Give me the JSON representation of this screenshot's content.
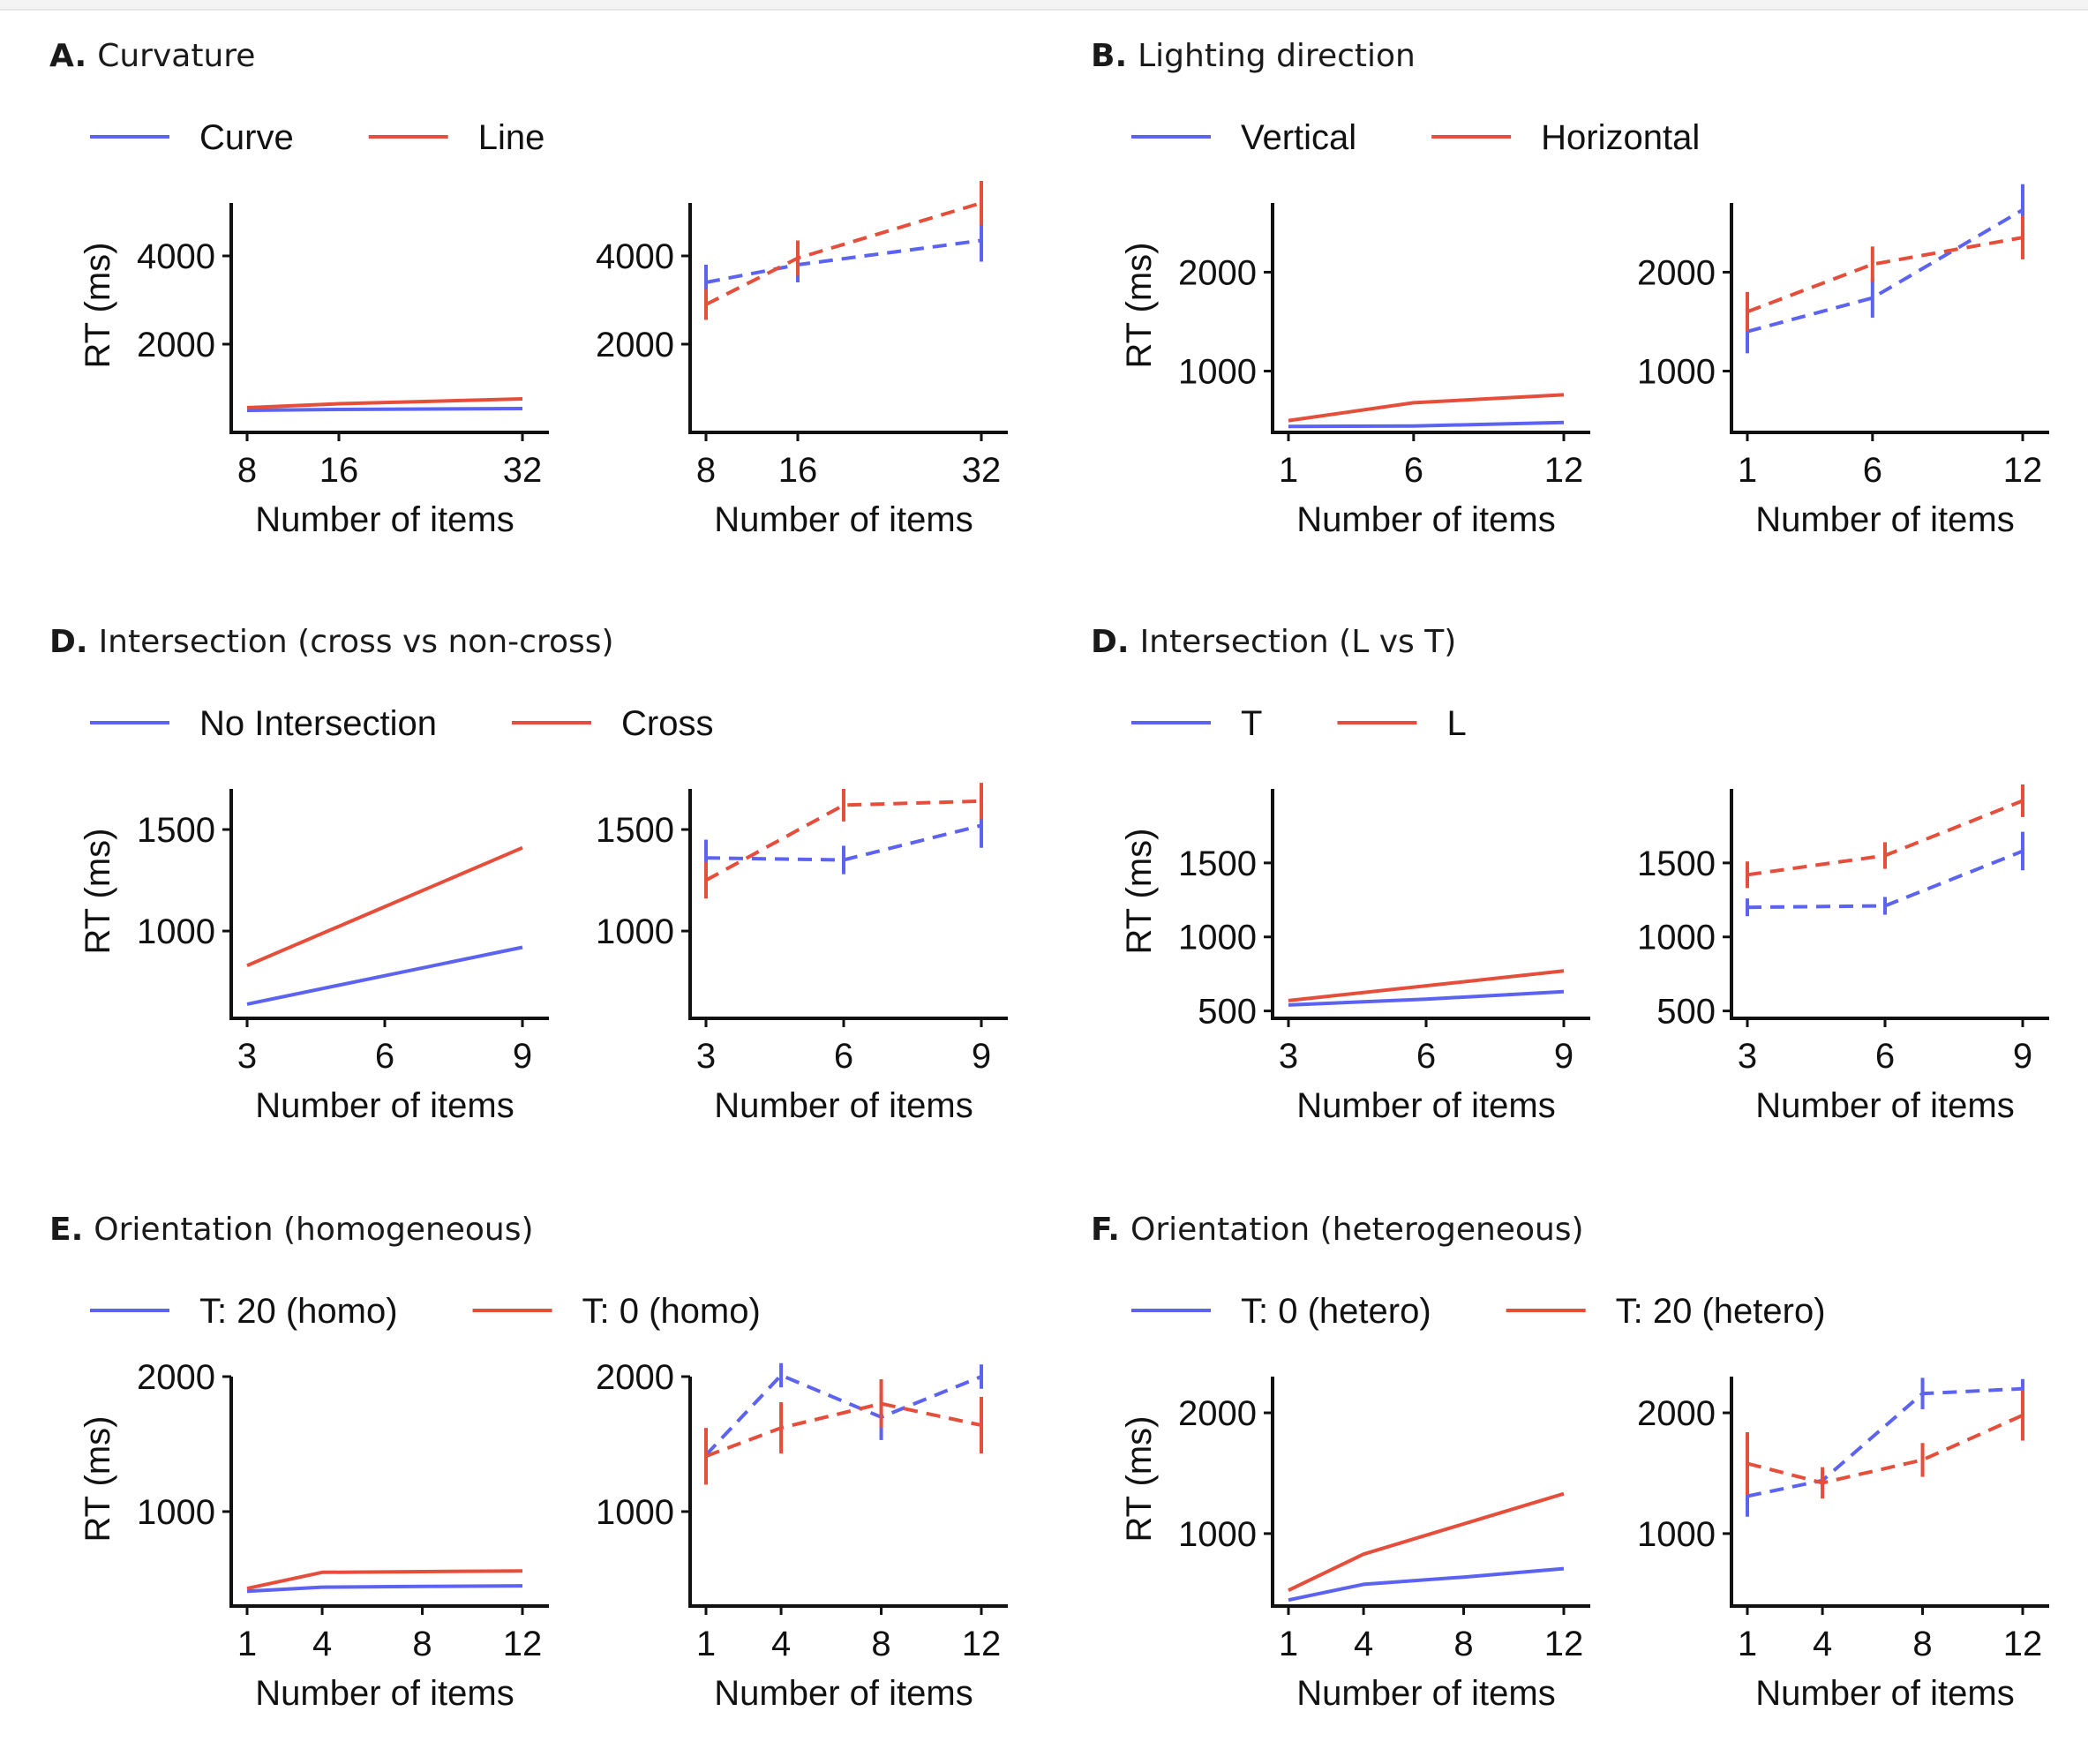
{
  "colors": {
    "blue": "#5b63f0",
    "red": "#e64e3c",
    "axis": "#111111"
  },
  "chart_data": [
    {
      "panel": "A.",
      "title": "Curvature",
      "type": "line",
      "ylabel": "RT (ms)",
      "xlabel": "Number of items",
      "x": [
        8,
        16,
        32
      ],
      "xticks": [
        8,
        16,
        32
      ],
      "xlim": [
        8,
        32
      ],
      "ylim": [
        0,
        5200
      ],
      "yticks": [
        2000,
        4000
      ],
      "legend": [
        "Curve",
        "Line"
      ],
      "left": {
        "style": "solid",
        "series": [
          {
            "name": "Curve",
            "color": "blue",
            "values": [
              500,
              520,
              540
            ]
          },
          {
            "name": "Line",
            "color": "red",
            "values": [
              560,
              650,
              760
            ]
          }
        ]
      },
      "right": {
        "style": "dashed",
        "series": [
          {
            "name": "Curve",
            "color": "blue",
            "values": [
              3400,
              3800,
              4350
            ],
            "err": [
              400,
              400,
              480
            ]
          },
          {
            "name": "Line",
            "color": "red",
            "values": [
              2900,
              3950,
              5200
            ],
            "err": [
              350,
              400,
              500
            ]
          }
        ]
      }
    },
    {
      "panel": "B.",
      "title": "Lighting direction",
      "type": "line",
      "ylabel": "RT (ms)",
      "xlabel": "Number of items",
      "x": [
        1,
        6,
        12
      ],
      "xticks": [
        1,
        6,
        12
      ],
      "xlim": [
        1,
        12
      ],
      "ylim": [
        380,
        2700
      ],
      "yticks": [
        1000,
        2000
      ],
      "legend": [
        "Vertical",
        "Horizontal"
      ],
      "left": {
        "style": "solid",
        "series": [
          {
            "name": "Vertical",
            "color": "blue",
            "values": [
              440,
              445,
              480
            ]
          },
          {
            "name": "Horizontal",
            "color": "red",
            "values": [
              500,
              680,
              760
            ]
          }
        ]
      },
      "right": {
        "style": "dashed",
        "series": [
          {
            "name": "Vertical",
            "color": "blue",
            "values": [
              1400,
              1740,
              2630
            ],
            "err": [
              220,
              200,
              260
            ]
          },
          {
            "name": "Horizontal",
            "color": "red",
            "values": [
              1600,
              2080,
              2350
            ],
            "err": [
              200,
              180,
              220
            ]
          }
        ]
      }
    },
    {
      "panel": "D.",
      "title": "Intersection (cross vs non-cross)",
      "type": "line",
      "ylabel": "RT (ms)",
      "xlabel": "Number of items",
      "x": [
        3,
        6,
        9
      ],
      "xticks": [
        3,
        6,
        9
      ],
      "xlim": [
        3,
        9
      ],
      "ylim": [
        570,
        1700
      ],
      "yticks": [
        1000,
        1500
      ],
      "legend": [
        "No Intersection",
        "Cross"
      ],
      "left": {
        "style": "solid",
        "series": [
          {
            "name": "No Intersection",
            "color": "blue",
            "values": [
              640,
              780,
              920
            ]
          },
          {
            "name": "Cross",
            "color": "red",
            "values": [
              830,
              1120,
              1410
            ]
          }
        ]
      },
      "right": {
        "style": "dashed",
        "series": [
          {
            "name": "No Intersection",
            "color": "blue",
            "values": [
              1360,
              1350,
              1520
            ],
            "err": [
              90,
              70,
              110
            ]
          },
          {
            "name": "Cross",
            "color": "red",
            "values": [
              1250,
              1620,
              1640
            ],
            "err": [
              90,
              80,
              90
            ]
          }
        ]
      }
    },
    {
      "panel": "D.",
      "title": "Intersection (L vs T)",
      "type": "line",
      "ylabel": "RT (ms)",
      "xlabel": "Number of items",
      "x": [
        3,
        6,
        9
      ],
      "xticks": [
        3,
        6,
        9
      ],
      "xlim": [
        3,
        9
      ],
      "ylim": [
        450,
        2000
      ],
      "yticks": [
        500,
        1000,
        1500
      ],
      "legend": [
        "T",
        "L"
      ],
      "left": {
        "style": "solid",
        "series": [
          {
            "name": "T",
            "color": "blue",
            "values": [
              540,
              580,
              630
            ]
          },
          {
            "name": "L",
            "color": "red",
            "values": [
              570,
              670,
              770
            ]
          }
        ]
      },
      "right": {
        "style": "dashed",
        "series": [
          {
            "name": "T",
            "color": "blue",
            "values": [
              1200,
              1210,
              1580
            ],
            "err": [
              60,
              60,
              130
            ]
          },
          {
            "name": "L",
            "color": "red",
            "values": [
              1420,
              1550,
              1920
            ],
            "err": [
              90,
              90,
              110
            ]
          }
        ]
      }
    },
    {
      "panel": "E.",
      "title": "Orientation (homogeneous)",
      "type": "line",
      "ylabel": "RT (ms)",
      "xlabel": "Number of items",
      "x": [
        1,
        4,
        8,
        12
      ],
      "xticks": [
        1,
        4,
        8,
        12
      ],
      "xlim": [
        1,
        12
      ],
      "ylim": [
        300,
        2000
      ],
      "yticks": [
        1000,
        2000
      ],
      "legend": [
        "T: 20 (homo)",
        "T: 0 (homo)"
      ],
      "left": {
        "style": "solid",
        "series": [
          {
            "name": "T: 20 (homo)",
            "color": "blue",
            "values": [
              410,
              440,
              445,
              450
            ]
          },
          {
            "name": "T: 0 (homo)",
            "color": "red",
            "values": [
              430,
              550,
              555,
              560
            ]
          }
        ]
      },
      "right": {
        "style": "dashed",
        "series": [
          {
            "name": "T: 20 (homo)",
            "color": "blue",
            "values": [
              1420,
              2010,
              1700,
              2000
            ],
            "err": [
              110,
              90,
              170,
              90
            ]
          },
          {
            "name": "T: 0 (homo)",
            "color": "red",
            "values": [
              1410,
              1620,
              1800,
              1640
            ],
            "err": [
              210,
              190,
              180,
              210
            ]
          }
        ]
      }
    },
    {
      "panel": "F.",
      "title": "Orientation (heterogeneous)",
      "type": "line",
      "ylabel": "RT (ms)",
      "xlabel": "Number of items",
      "x": [
        1,
        4,
        8,
        12
      ],
      "xticks": [
        1,
        4,
        8,
        12
      ],
      "xlim": [
        1,
        12
      ],
      "ylim": [
        400,
        2300
      ],
      "yticks": [
        1000,
        2000
      ],
      "legend": [
        "T: 0 (hetero)",
        "T: 20 (hetero)"
      ],
      "left": {
        "style": "solid",
        "series": [
          {
            "name": "T: 0 (hetero)",
            "color": "blue",
            "values": [
              450,
              580,
              640,
              710
            ]
          },
          {
            "name": "T: 20 (hetero)",
            "color": "red",
            "values": [
              530,
              830,
              1080,
              1330
            ]
          }
        ]
      },
      "right": {
        "style": "dashed",
        "series": [
          {
            "name": "T: 0 (hetero)",
            "color": "blue",
            "values": [
              1310,
              1440,
              2160,
              2200
            ],
            "err": [
              170,
              70,
              130,
              80
            ]
          },
          {
            "name": "T: 20 (hetero)",
            "color": "red",
            "values": [
              1580,
              1420,
              1610,
              1980
            ],
            "err": [
              260,
              130,
              140,
              210
            ]
          }
        ]
      }
    }
  ]
}
